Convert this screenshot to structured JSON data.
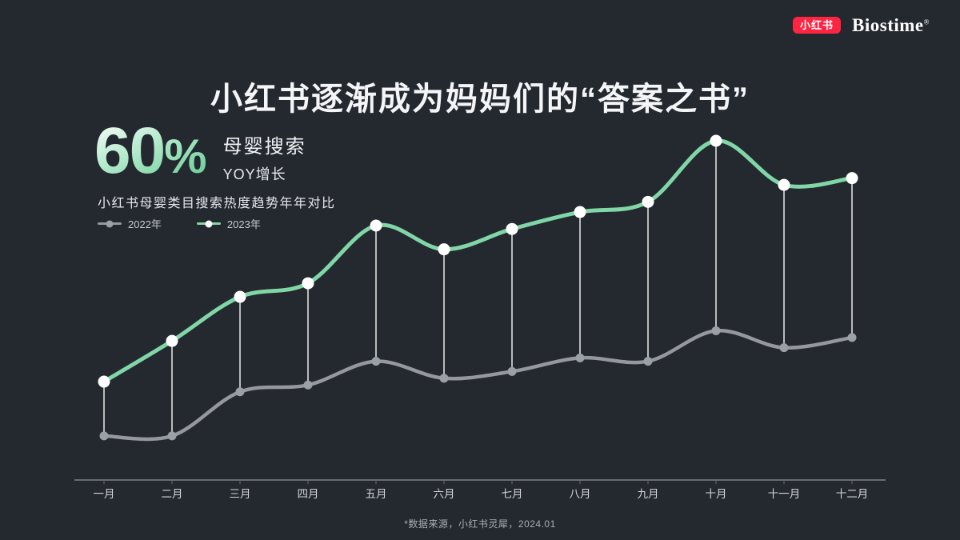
{
  "colors": {
    "background": "#24282f",
    "accent_green": "#80d6a6",
    "line_gray": "#95999e",
    "badge_red": "#ff2442",
    "text_white": "#ffffff"
  },
  "header": {
    "xiaohongshu_badge": "小红书",
    "biostime_wordmark": "Biostime",
    "registered_mark": "®"
  },
  "title": "小红书逐渐成为妈妈们的“答案之书”",
  "highlight": {
    "value": "60",
    "percent_sign": "%",
    "label_line1": "母婴搜索",
    "label_line2": "YOY增长"
  },
  "chart_data": {
    "type": "line",
    "title": "小红书母婴类目搜索热度趋势年年对比",
    "categories": [
      "一月",
      "二月",
      "三月",
      "四月",
      "五月",
      "六月",
      "七月",
      "八月",
      "九月",
      "十月",
      "十一月",
      "十二月"
    ],
    "series": [
      {
        "name": "2022年",
        "color": "#95999e",
        "dot_color": "#9aa0a6",
        "values": [
          13,
          13,
          26,
          28,
          35,
          30,
          32,
          36,
          35,
          44,
          39,
          42
        ]
      },
      {
        "name": "2023年",
        "color": "#80d6a6",
        "dot_color": "#ffffff",
        "values": [
          29,
          41,
          54,
          58,
          75,
          68,
          74,
          79,
          82,
          100,
          87,
          89
        ]
      }
    ],
    "ylim": [
      0,
      100
    ],
    "grid": false,
    "legend_position": "top-left",
    "annotations": "white drop lines connect 2023 points to 2022 points each month"
  },
  "footer": {
    "source_note": "*数据来源，小红书灵犀，2024.01"
  }
}
